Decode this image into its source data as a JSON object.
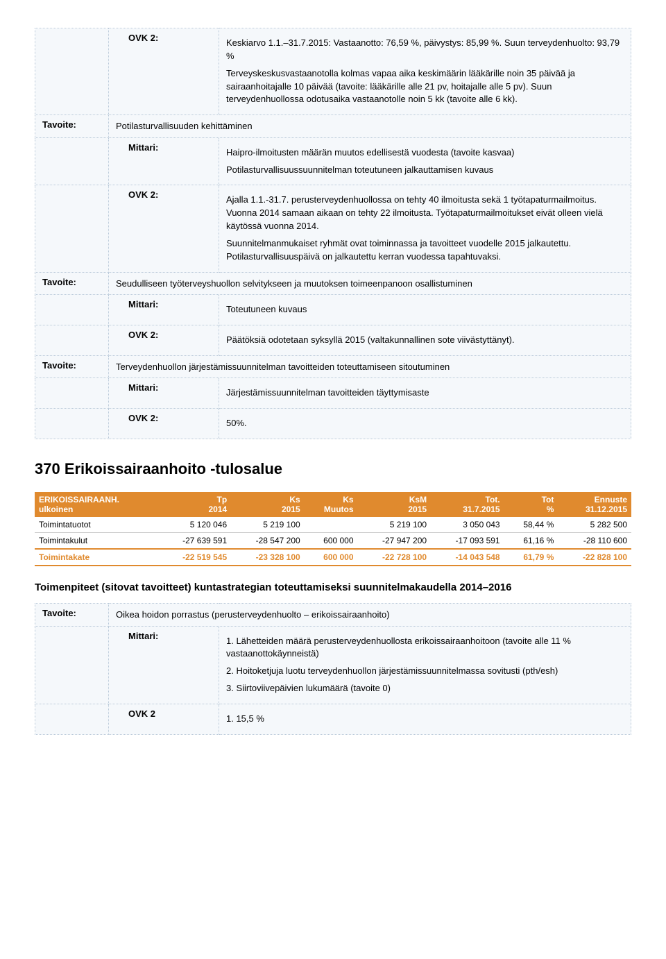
{
  "table1": {
    "rows": [
      {
        "label": "",
        "mittari": "OVK 2:",
        "content": "Keskiarvo 1.1.–31.7.2015: Vastaanotto: 76,59 %, päivystys: 85,99 %. Suun terveydenhuolto: 93,79 %\n\nTerveyskeskusvastaanotolla kolmas vapaa aika keskimäärin lääkärille noin 35 päivää ja sairaanhoitajalle 10 päivää (tavoite: lääkärille alle 21 pv, hoitajalle alle 5 pv). Suun terveydenhuollossa odotusaika vastaanotolle noin 5 kk (tavoite alle 6 kk)."
      },
      {
        "label": "Tavoite:",
        "content": "Potilasturvallisuuden kehittäminen"
      },
      {
        "label": "",
        "mittari": "Mittari:",
        "content": "Haipro-ilmoitusten määrän muutos edellisestä vuodesta (tavoite kasvaa)\n\nPotilasturvallisuussuunnitelman toteutuneen jalkauttamisen kuvaus"
      },
      {
        "label": "",
        "mittari": "OVK 2:",
        "content": "Ajalla 1.1.-31.7. perusterveydenhuollossa on tehty 40 ilmoitusta sekä 1 työtapaturmailmoitus. Vuonna 2014 samaan aikaan on tehty 22 ilmoitusta. Työtapaturmailmoitukset eivät olleen vielä käytössä vuonna 2014.\n\nSuunnitelmanmukaiset ryhmät ovat toiminnassa ja tavoitteet vuodelle 2015 jalkautettu. Potilasturvallisuuspäivä on jalkautettu kerran vuodessa tapahtuvaksi."
      },
      {
        "label": "Tavoite:",
        "content": "Seudulliseen työterveyshuollon selvitykseen ja muutoksen toimeenpanoon osallistuminen"
      },
      {
        "label": "",
        "mittari": "Mittari:",
        "content": "Toteutuneen kuvaus"
      },
      {
        "label": "",
        "mittari": "OVK 2:",
        "content": "Päätöksiä odotetaan syksyllä 2015 (valtakunnallinen sote viivästyttänyt)."
      },
      {
        "label": "Tavoite:",
        "content": "Terveydenhuollon järjestämissuunnitelman tavoitteiden toteuttamiseen sitoutuminen"
      },
      {
        "label": "",
        "mittari": "Mittari:",
        "content": "Järjestämissuunnitelman tavoitteiden täyttymisaste"
      },
      {
        "label": "",
        "mittari": "OVK 2:",
        "content": "50%."
      }
    ]
  },
  "section_title": "370 Erikoissairaanhoito -tulosalue",
  "finance": {
    "header": [
      "ERIKOISSAIRAANH. ulkoinen",
      "Tp 2014",
      "Ks 2015",
      "Ks Muutos",
      "KsM 2015",
      "Tot. 31.7.2015",
      "Tot %",
      "Ennuste 31.12.2015"
    ],
    "rows": [
      {
        "label": "Toimintatuotot",
        "v": [
          "5 120 046",
          "5 219 100",
          "",
          "5 219 100",
          "3 050 043",
          "58,44 %",
          "5 282 500"
        ]
      },
      {
        "label": "Toimintakulut",
        "v": [
          "-27 639 591",
          "-28 547 200",
          "600 000",
          "-27 947 200",
          "-17 093 591",
          "61,16 %",
          "-28 110 600"
        ]
      }
    ],
    "total": {
      "label": "Toimintakate",
      "v": [
        "-22 519 545",
        "-23 328 100",
        "600 000",
        "-22 728 100",
        "-14 043 548",
        "61,79 %",
        "-22 828 100"
      ]
    }
  },
  "sub_title": "Toimenpiteet (sitovat tavoitteet) kuntastrategian toteuttamiseksi suunnitelmakaudella 2014–2016",
  "table2": {
    "rows": [
      {
        "label": "Tavoite:",
        "content": "Oikea hoidon porrastus (perusterveydenhuolto – erikoissairaanhoito)"
      },
      {
        "label": "",
        "mittari": "Mittari:",
        "content": "1. Lähetteiden määrä perusterveydenhuollosta erikoissairaanhoitoon (tavoite alle 11 % vastaanottokäynneistä)\n\n2. Hoitoketjuja luotu terveydenhuollon järjestämissuunnitelmassa sovitusti (pth/esh)\n\n3. Siirtoviivepäivien lukumäärä (tavoite 0)"
      },
      {
        "label": "",
        "mittari": "OVK 2",
        "content": "1. 15,5 %"
      }
    ]
  }
}
